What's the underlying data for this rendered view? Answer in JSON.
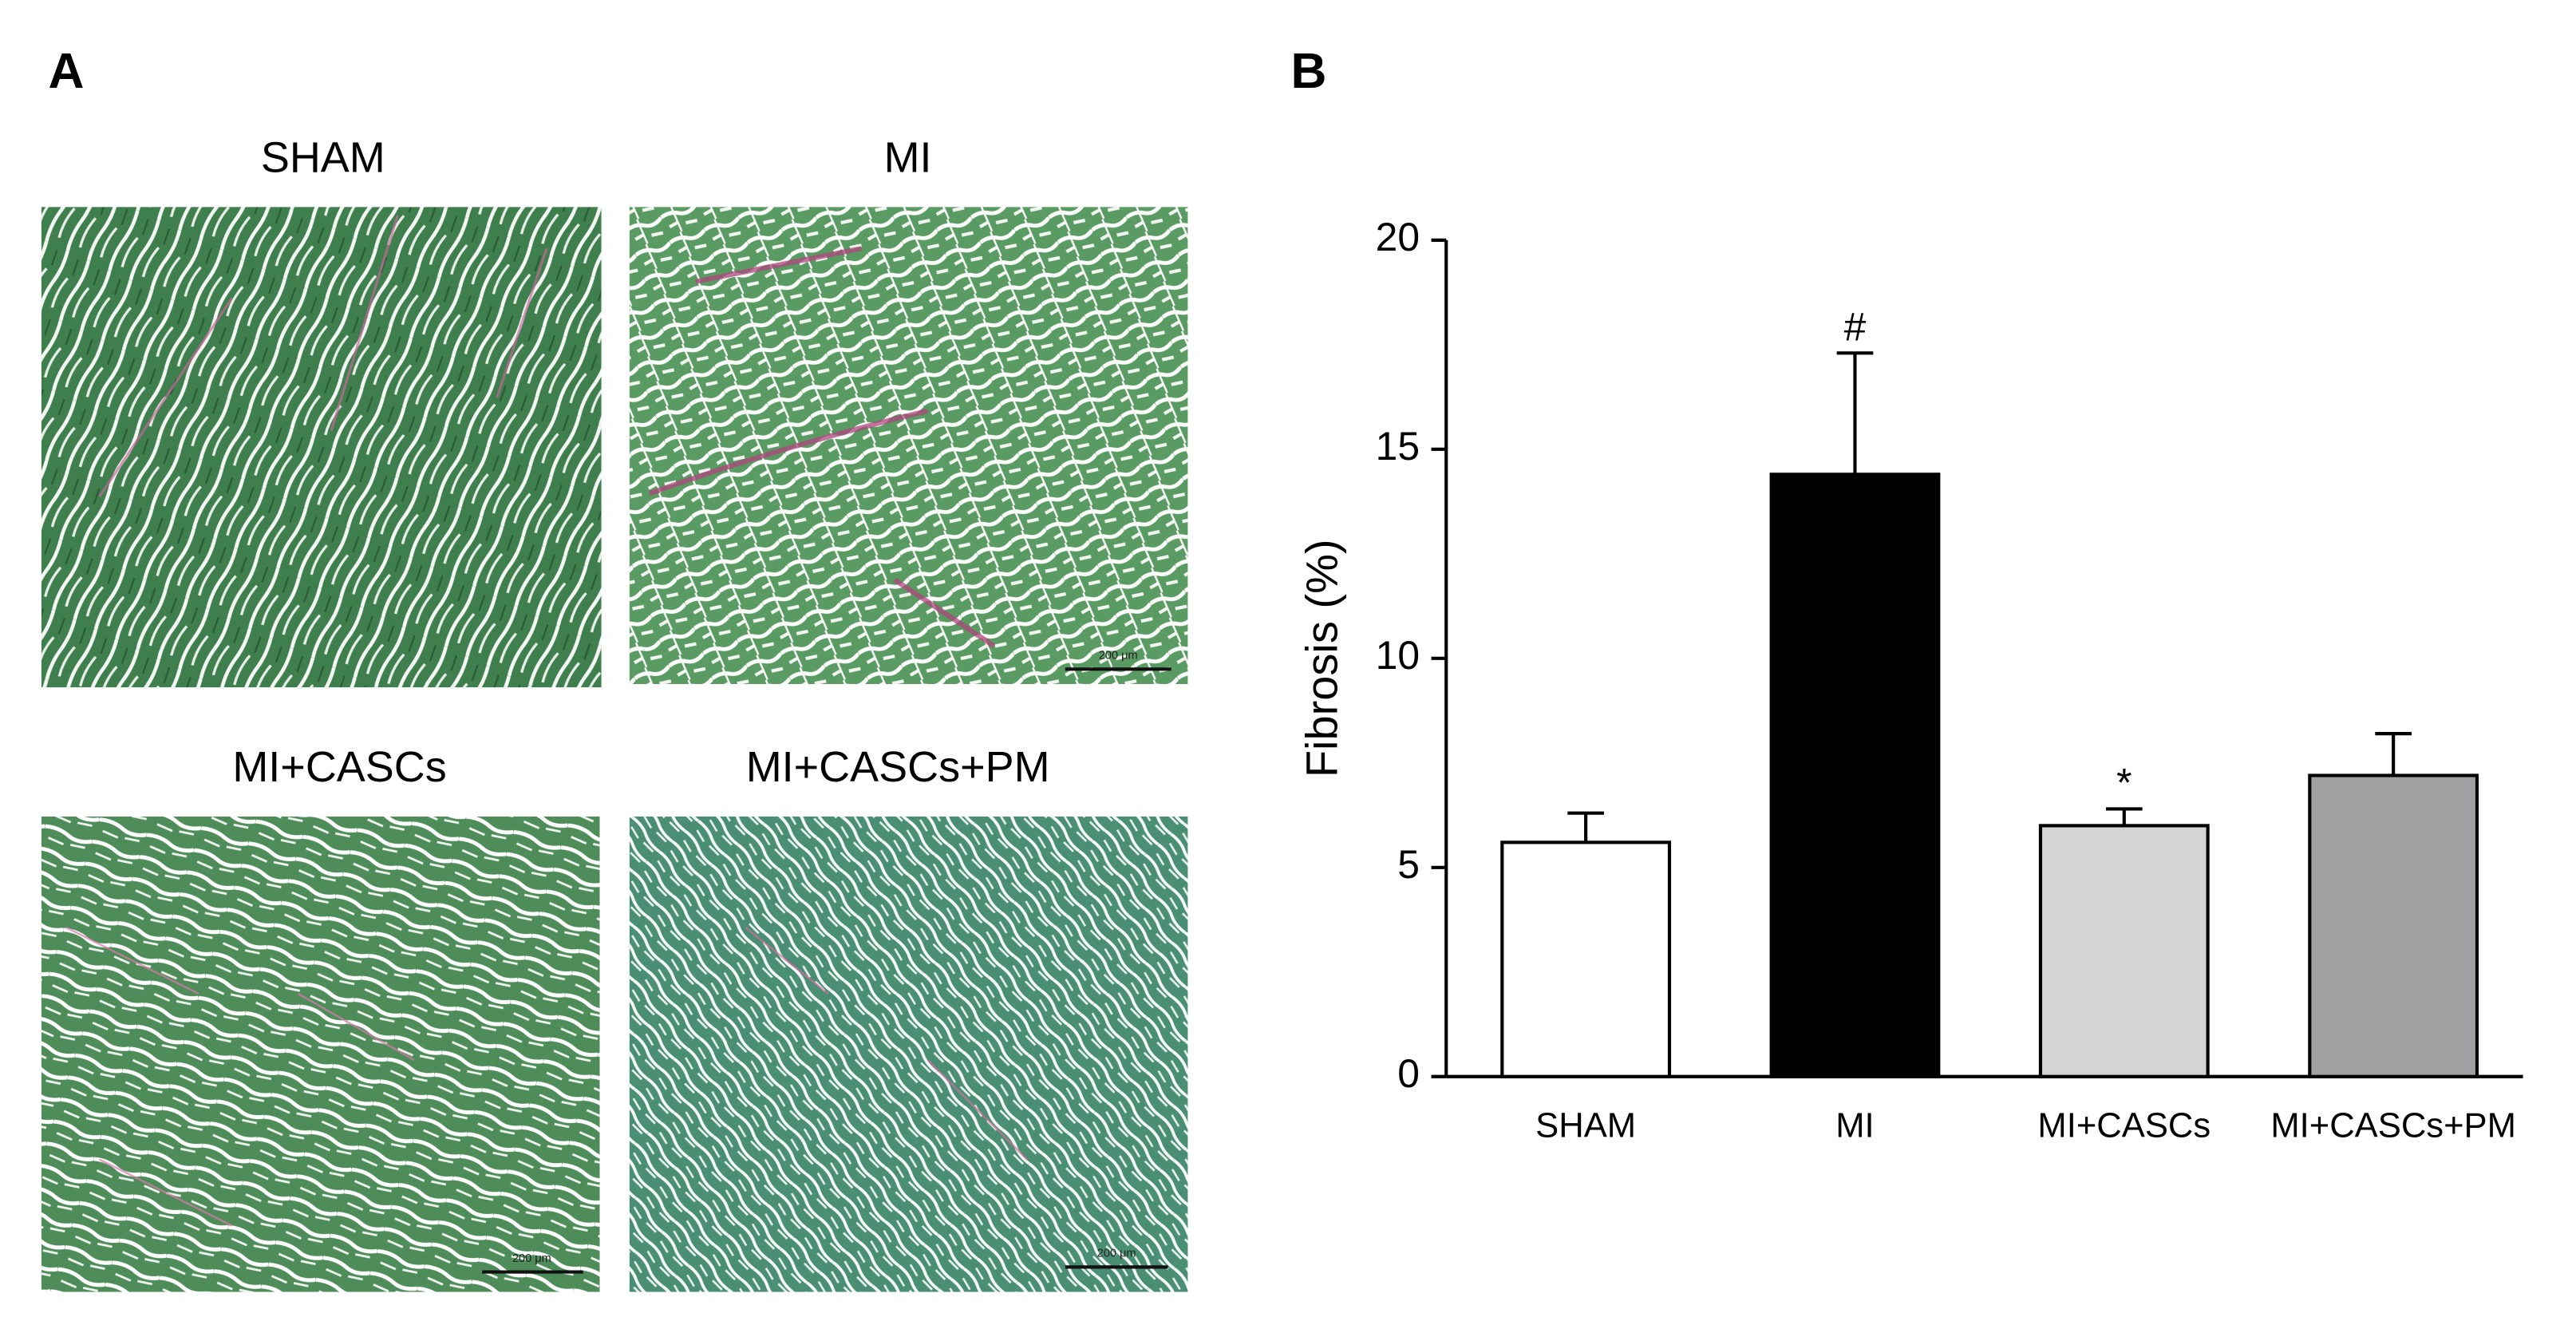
{
  "panel_labels": [
    "A",
    "B"
  ],
  "micrographs": {
    "titles": [
      "SHAM",
      "MI",
      "MI+CASCs",
      "MI+CASCs+PM"
    ],
    "scale_bar": "200 μm"
  },
  "chart_data": {
    "type": "bar",
    "categories": [
      "SHAM",
      "MI",
      "MI+CASCs",
      "MI+CASCs+PM"
    ],
    "values": [
      5.6,
      14.4,
      6.0,
      7.2
    ],
    "errors": [
      0.7,
      2.9,
      0.4,
      1.0
    ],
    "annotations": [
      null,
      "#",
      "*",
      null
    ],
    "colors": [
      "#ffffff",
      "#000000",
      "#d4d4d4",
      "#a0a0a3"
    ],
    "y_label": "Fibrosis (%)",
    "ylim": [
      0,
      20
    ],
    "yticks": [
      0,
      5,
      10,
      15,
      20
    ],
    "grid": false
  }
}
